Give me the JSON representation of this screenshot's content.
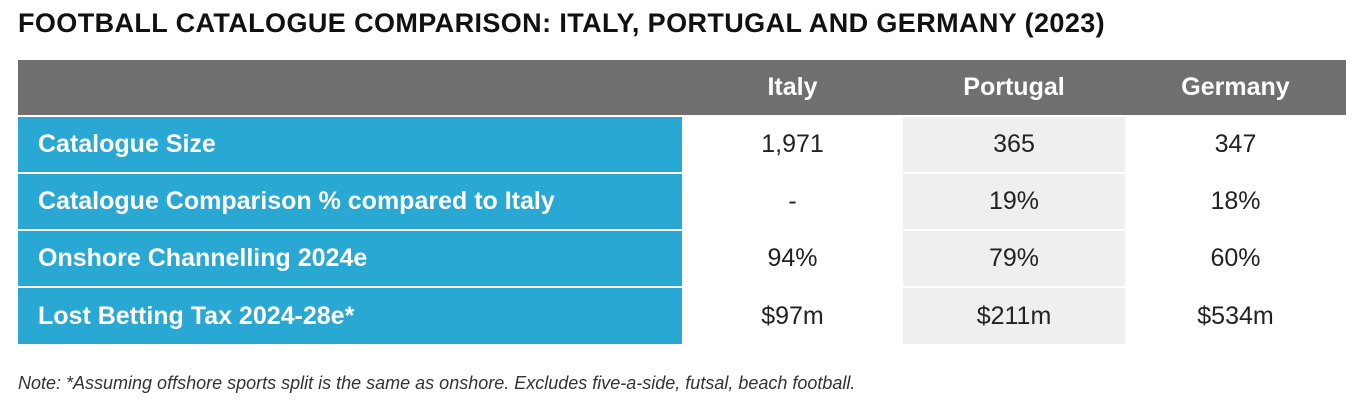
{
  "title": "FOOTBALL CATALOGUE COMPARISON: ITALY, PORTUGAL AND GERMANY (2023)",
  "table": {
    "columns": [
      "Italy",
      "Portugal",
      "Germany"
    ],
    "rows": [
      {
        "label": "Catalogue Size",
        "values": [
          "1,971",
          "365",
          "347"
        ]
      },
      {
        "label": "Catalogue Comparison % compared to Italy",
        "values": [
          "-",
          "19%",
          "18%"
        ]
      },
      {
        "label": "Onshore Channelling 2024e",
        "values": [
          "94%",
          "79%",
          "60%"
        ]
      },
      {
        "label": "Lost Betting Tax 2024-28e*",
        "values": [
          "$97m",
          "$211m",
          "$534m"
        ]
      }
    ]
  },
  "note": "Note: *Assuming offshore sports split is the same as onshore. Excludes five-a-side, futsal, beach football.",
  "colors": {
    "header_bg": "#707070",
    "label_bg": "#29a8d3",
    "portugal_bg": "#efefef"
  }
}
